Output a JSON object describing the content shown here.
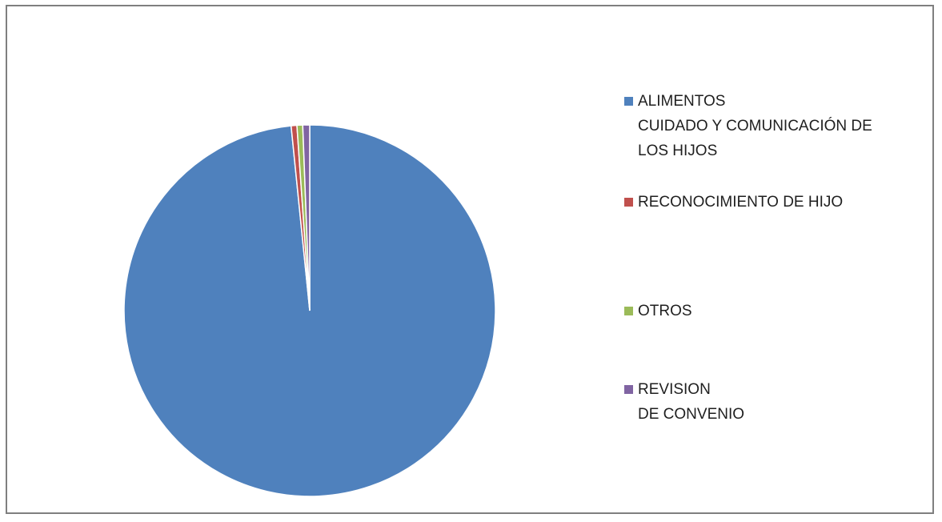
{
  "chart_data": {
    "type": "pie",
    "title": "",
    "slices": [
      {
        "label": "ALIMENTOS\nCUIDADO Y COMUNICACIÓN DE\nLOS HIJOS",
        "value": 98.4,
        "color": "#4f81bd"
      },
      {
        "label": "RECONOCIMIENTO DE HIJO",
        "value": 0.5,
        "color": "#c0504d"
      },
      {
        "label": "OTROS",
        "value": 0.5,
        "color": "#9bbb59"
      },
      {
        "label": "REVISION\nDE CONVENIO",
        "value": 0.6,
        "color": "#8064a2"
      }
    ],
    "legend_position": "right",
    "start_angle_deg": 0,
    "direction": "clockwise"
  }
}
